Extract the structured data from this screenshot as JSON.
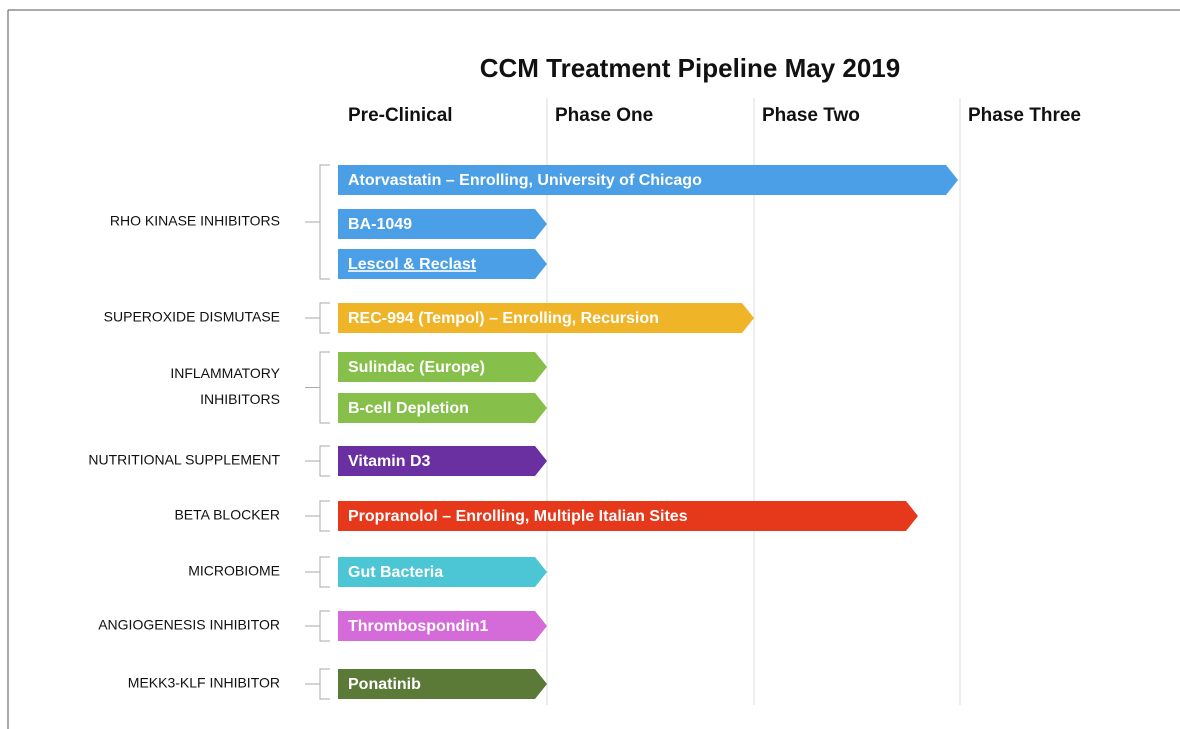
{
  "title": "CCM Treatment Pipeline May 2019",
  "phases": [
    "Pre-Clinical",
    "Phase One",
    "Phase Two",
    "Phase Three"
  ],
  "groups": [
    {
      "label": [
        "RHO KINASE INHIBITORS"
      ],
      "color": "#4a9fe6",
      "drugs": [
        "Atorvastatin – Enrolling, University  of Chicago",
        "BA-1049",
        "Lescol & Reclast"
      ]
    },
    {
      "label": [
        "SUPEROXIDE DISMUTASE"
      ],
      "color": "#f0b429",
      "drugs": [
        "REC-994 (Tempol) – Enrolling, Recursion"
      ]
    },
    {
      "label": [
        "INFLAMMATORY",
        "INHIBITORS"
      ],
      "color": "#86c04a",
      "drugs": [
        "Sulindac (Europe)",
        "B-cell Depletion"
      ]
    },
    {
      "label": [
        "NUTRITIONAL SUPPLEMENT"
      ],
      "color": "#6a2fa0",
      "drugs": [
        "Vitamin D3"
      ]
    },
    {
      "label": [
        "BETA BLOCKER"
      ],
      "color": "#e6381a",
      "drugs": [
        "Propranolol – Enrolling, Multiple Italian Sites"
      ]
    },
    {
      "label": [
        "MICROBIOME"
      ],
      "color": "#4cc6d4",
      "drugs": [
        "Gut Bacteria"
      ]
    },
    {
      "label": [
        "ANGIOGENESIS INHIBITOR"
      ],
      "color": "#d46bd9",
      "drugs": [
        "Thrombospondin1"
      ]
    },
    {
      "label": [
        "MEKK3-KLF INHIBITOR"
      ],
      "color": "#5b7a38",
      "drugs": [
        "Ponatinib"
      ]
    }
  ]
}
